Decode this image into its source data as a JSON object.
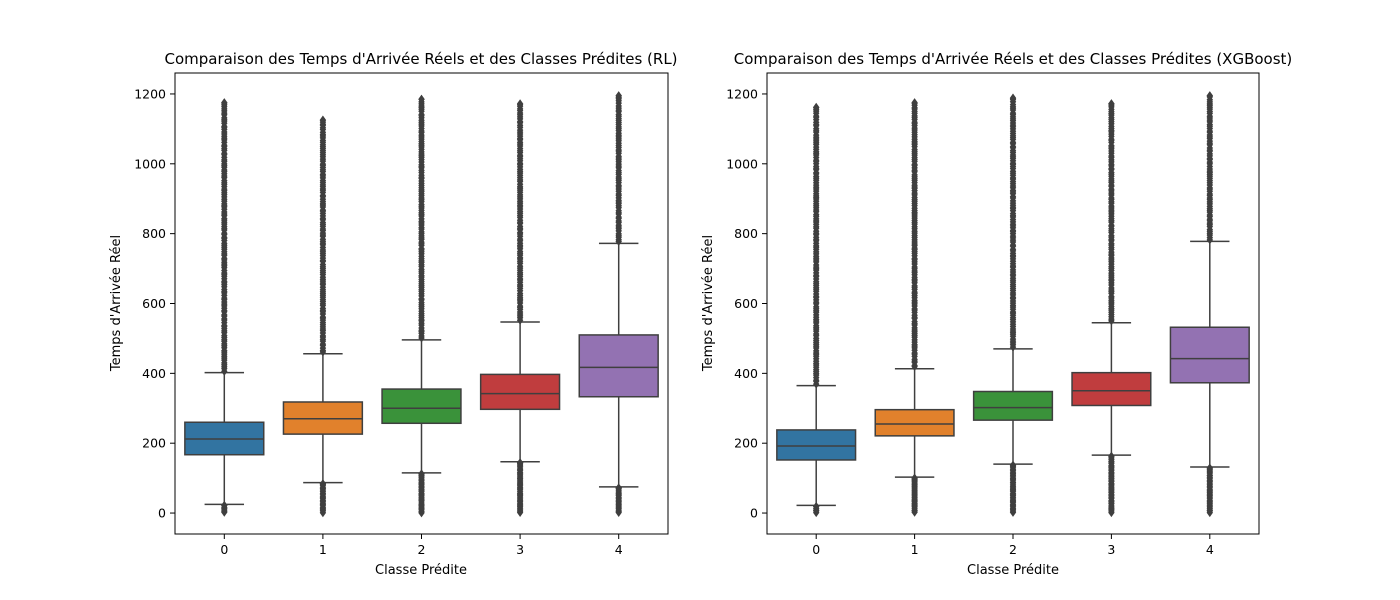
{
  "chart_data": [
    {
      "type": "boxplot",
      "title": "Comparaison des Temps d'Arrivée Réels et des Classes Prédites (RL)",
      "xlabel": "Classe Prédite",
      "ylabel": "Temps d'Arrivée Réel",
      "categories": [
        "0",
        "1",
        "2",
        "3",
        "4"
      ],
      "ylim": [
        -60,
        1260
      ],
      "yticks": [
        0,
        200,
        400,
        600,
        800,
        1000,
        1200
      ],
      "boxes": [
        {
          "category": "0",
          "color": "#3274a1",
          "whisker_low": 25,
          "q1": 167,
          "median": 212,
          "q3": 260,
          "whisker_high": 402,
          "outlier_low_min": 0,
          "outlier_high_max": 1175
        },
        {
          "category": "1",
          "color": "#e1812c",
          "whisker_low": 87,
          "q1": 226,
          "median": 270,
          "q3": 318,
          "whisker_high": 456,
          "outlier_low_min": 0,
          "outlier_high_max": 1125
        },
        {
          "category": "2",
          "color": "#3a923a",
          "whisker_low": 115,
          "q1": 257,
          "median": 300,
          "q3": 355,
          "whisker_high": 496,
          "outlier_low_min": 0,
          "outlier_high_max": 1185
        },
        {
          "category": "3",
          "color": "#c03d3e",
          "whisker_low": 147,
          "q1": 297,
          "median": 342,
          "q3": 397,
          "whisker_high": 547,
          "outlier_low_min": 0,
          "outlier_high_max": 1172
        },
        {
          "category": "4",
          "color": "#9372b2",
          "whisker_low": 75,
          "q1": 333,
          "median": 417,
          "q3": 510,
          "whisker_high": 772,
          "outlier_low_min": 0,
          "outlier_high_max": 1195
        }
      ]
    },
    {
      "type": "boxplot",
      "title": "Comparaison des Temps d'Arrivée Réels et des Classes Prédites (XGBoost)",
      "xlabel": "Classe Prédite",
      "ylabel": "Temps d'Arrivée Réel",
      "categories": [
        "0",
        "1",
        "2",
        "3",
        "4"
      ],
      "ylim": [
        -60,
        1260
      ],
      "yticks": [
        0,
        200,
        400,
        600,
        800,
        1000,
        1200
      ],
      "boxes": [
        {
          "category": "0",
          "color": "#3274a1",
          "whisker_low": 22,
          "q1": 152,
          "median": 192,
          "q3": 238,
          "whisker_high": 365,
          "outlier_low_min": 0,
          "outlier_high_max": 1162
        },
        {
          "category": "1",
          "color": "#e1812c",
          "whisker_low": 103,
          "q1": 221,
          "median": 255,
          "q3": 296,
          "whisker_high": 413,
          "outlier_low_min": 0,
          "outlier_high_max": 1175
        },
        {
          "category": "2",
          "color": "#3a923a",
          "whisker_low": 140,
          "q1": 266,
          "median": 302,
          "q3": 348,
          "whisker_high": 470,
          "outlier_low_min": 0,
          "outlier_high_max": 1188
        },
        {
          "category": "3",
          "color": "#c03d3e",
          "whisker_low": 166,
          "q1": 308,
          "median": 350,
          "q3": 402,
          "whisker_high": 545,
          "outlier_low_min": 0,
          "outlier_high_max": 1172
        },
        {
          "category": "4",
          "color": "#9372b2",
          "whisker_low": 132,
          "q1": 373,
          "median": 442,
          "q3": 532,
          "whisker_high": 778,
          "outlier_low_min": 0,
          "outlier_high_max": 1195
        }
      ]
    }
  ]
}
